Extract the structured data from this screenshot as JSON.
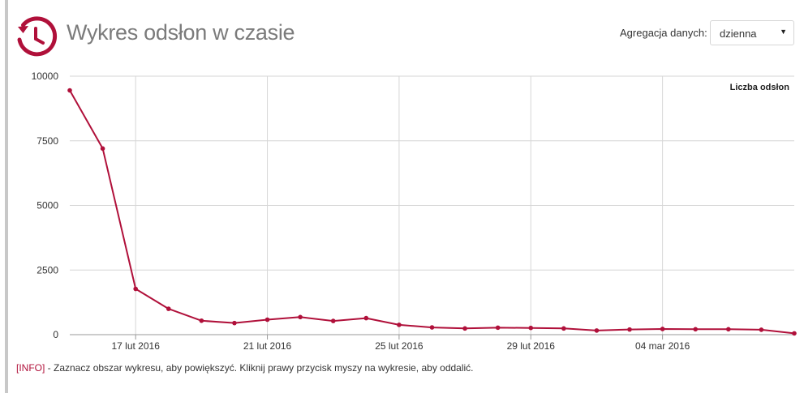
{
  "header": {
    "title": "Wykres odsłon w czasie",
    "aggregation_label": "Agregacja danych:",
    "aggregation_value": "dzienna"
  },
  "info": {
    "tag": "[INFO]",
    "text": " - Zaznacz obszar wykresu, aby powiększyć. Kliknij prawy przycisk myszy na wykresie, aby oddalić."
  },
  "colors": {
    "accent": "#b0103a",
    "grid": "#d6d6d6",
    "title": "#7b7b7b"
  },
  "icons": {
    "header": "history-clock-icon",
    "select": "caret-down-icon"
  },
  "chart_data": {
    "type": "line",
    "title": "",
    "xlabel": "",
    "ylabel": "",
    "legend_text": "Liczba odsłon",
    "legend_position": "top-right",
    "grid": true,
    "ylim": [
      0,
      10000
    ],
    "yticks": [
      0,
      2500,
      5000,
      7500,
      10000
    ],
    "xlim": [
      "15 lut 2016",
      "08 mar 2016"
    ],
    "xticks": [
      "17 lut 2016",
      "21 lut 2016",
      "25 lut 2016",
      "29 lut 2016",
      "04 mar 2016"
    ],
    "series": [
      {
        "name": "Liczba odsłon",
        "color": "#b0103a",
        "x": [
          "15 lut 2016",
          "16 lut 2016",
          "17 lut 2016",
          "18 lut 2016",
          "19 lut 2016",
          "20 lut 2016",
          "21 lut 2016",
          "22 lut 2016",
          "23 lut 2016",
          "24 lut 2016",
          "25 lut 2016",
          "26 lut 2016",
          "27 lut 2016",
          "28 lut 2016",
          "29 lut 2016",
          "01 mar 2016",
          "02 mar 2016",
          "03 mar 2016",
          "04 mar 2016",
          "05 mar 2016",
          "06 mar 2016",
          "07 mar 2016",
          "08 mar 2016"
        ],
        "values": [
          9450,
          7200,
          1770,
          1000,
          540,
          450,
          580,
          680,
          530,
          640,
          380,
          280,
          240,
          270,
          260,
          240,
          160,
          200,
          220,
          210,
          210,
          190,
          50
        ]
      }
    ]
  }
}
